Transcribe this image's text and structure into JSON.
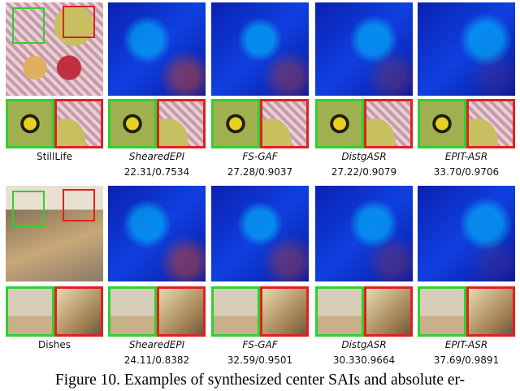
{
  "rows": [
    {
      "scene": "StillLife",
      "methods": [
        {
          "name": "ShearedEPI",
          "score": "22.31/0.7534"
        },
        {
          "name": "FS-GAF",
          "score": "27.28/0.9037"
        },
        {
          "name": "DistgASR",
          "score": "27.22/0.9079"
        },
        {
          "name": "EPIT-ASR",
          "score": "33.70/0.9706"
        }
      ]
    },
    {
      "scene": "Dishes",
      "methods": [
        {
          "name": "ShearedEPI",
          "score": "24.11/0.8382"
        },
        {
          "name": "FS-GAF",
          "score": "32.59/0.9501"
        },
        {
          "name": "DistgASR",
          "score": "30.330.9664"
        },
        {
          "name": "EPIT-ASR",
          "score": "37.69/0.9891"
        }
      ]
    }
  ],
  "caption": "Figure 10. Examples of synthesized center SAIs and absolute er-"
}
